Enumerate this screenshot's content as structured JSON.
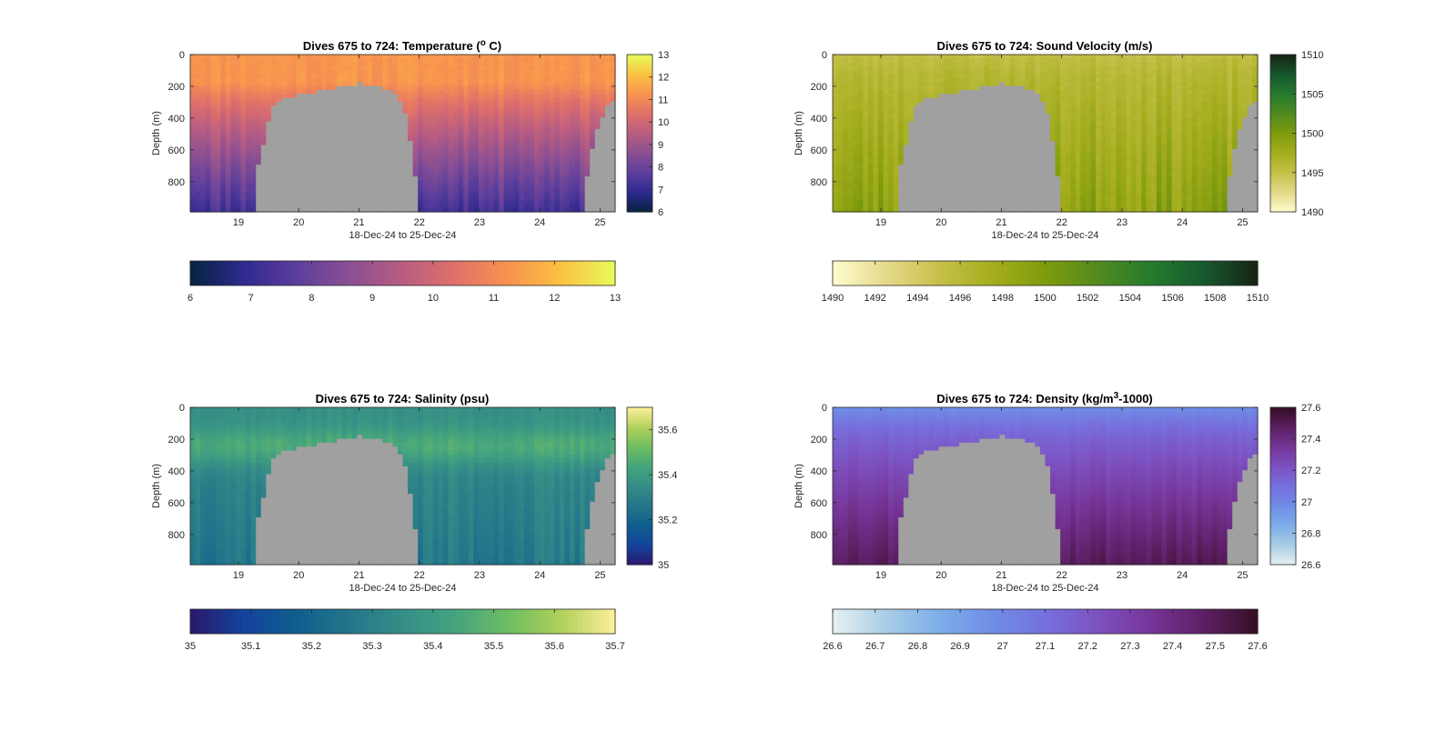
{
  "figure": {
    "background": "#ffffff",
    "mask_color": "#a0a0a0"
  },
  "chart_data": [
    {
      "type": "heatmap",
      "title": "Dives 675 to 724: Temperature (° C)",
      "title_parts": [
        "Dives 675 to 724: Temperature (",
        "o",
        " C)"
      ],
      "xlabel": "18-Dec-24 to 25-Dec-24",
      "ylabel": "Depth (m)",
      "x_ticks": [
        "19",
        "20",
        "21",
        "22",
        "23",
        "24",
        "25"
      ],
      "x_tick_values": [
        19,
        20,
        21,
        22,
        23,
        24,
        25
      ],
      "xlim": [
        18.2,
        25.25
      ],
      "y_ticks": [
        "0",
        "200",
        "400",
        "600",
        "800"
      ],
      "y_tick_values": [
        0,
        200,
        400,
        600,
        800
      ],
      "ylim": [
        0,
        990
      ],
      "y_reversed": true,
      "colormap": "thermal",
      "colormap_stops": [
        "#04233e",
        "#2e2a8f",
        "#5c3e9c",
        "#8a4f93",
        "#b85d82",
        "#e0706a",
        "#f8934f",
        "#fbc242",
        "#e8fa5b"
      ],
      "clim": [
        6,
        13
      ],
      "vertical_colorbar_ticks": [
        "6",
        "7",
        "8",
        "9",
        "10",
        "11",
        "12",
        "13"
      ],
      "horizontal_colorbar_ticks": [
        "6",
        "7",
        "8",
        "9",
        "10",
        "11",
        "12",
        "13"
      ],
      "surface_value": 11.3,
      "bottom_value": 7.3,
      "profile_shape": "warm-decay",
      "noise": 0.35,
      "seed": 11,
      "bottom_depth_profile": {
        "x": [
          18.2,
          19.25,
          19.3,
          19.45,
          19.55,
          19.7,
          19.9,
          20.1,
          20.35,
          20.6,
          20.8,
          21.0,
          21.2,
          21.4,
          21.55,
          21.7,
          21.8,
          21.9,
          22.0,
          24.7,
          24.8,
          24.9,
          25.0,
          25.1,
          25.25
        ],
        "depth": [
          990,
          990,
          730,
          520,
          340,
          280,
          265,
          250,
          230,
          210,
          195,
          185,
          190,
          205,
          240,
          300,
          420,
          650,
          990,
          990,
          730,
          550,
          420,
          330,
          270
        ]
      }
    },
    {
      "type": "heatmap",
      "title": "Dives 675 to 724: Sound Velocity (m/s)",
      "title_parts": [
        "Dives 675 to 724: Sound Velocity (m/s)"
      ],
      "xlabel": "18-Dec-24 to 25-Dec-24",
      "ylabel": "Depth (m)",
      "x_ticks": [
        "19",
        "20",
        "21",
        "22",
        "23",
        "24",
        "25"
      ],
      "x_tick_values": [
        19,
        20,
        21,
        22,
        23,
        24,
        25
      ],
      "xlim": [
        18.2,
        25.25
      ],
      "y_ticks": [
        "0",
        "200",
        "400",
        "600",
        "800"
      ],
      "y_tick_values": [
        0,
        200,
        400,
        600,
        800
      ],
      "ylim": [
        0,
        990
      ],
      "y_reversed": true,
      "colormap": "speed",
      "colormap_stops": [
        "#fffdcd",
        "#e5d98b",
        "#c6c04a",
        "#a5ae1f",
        "#7f9b0c",
        "#528a1f",
        "#257b2e",
        "#17582e",
        "#172313"
      ],
      "clim": [
        1490,
        1510
      ],
      "vertical_colorbar_ticks": [
        "1490",
        "1495",
        "1500",
        "1505",
        "1510"
      ],
      "horizontal_colorbar_ticks": [
        "1490",
        "1492",
        "1494",
        "1496",
        "1498",
        "1500",
        "1502",
        "1504",
        "1506",
        "1508",
        "1510"
      ],
      "surface_value": 1495.3,
      "bottom_value": 1499.2,
      "profile_shape": "sound-speed",
      "noise": 1.2,
      "seed": 23,
      "bottom_depth_profile": {
        "x": [
          18.2,
          19.25,
          19.3,
          19.45,
          19.55,
          19.7,
          19.9,
          20.1,
          20.35,
          20.6,
          20.8,
          21.0,
          21.2,
          21.4,
          21.55,
          21.7,
          21.8,
          21.9,
          22.0,
          24.7,
          24.8,
          24.9,
          25.0,
          25.1,
          25.25
        ],
        "depth": [
          990,
          990,
          730,
          520,
          340,
          280,
          265,
          250,
          230,
          210,
          195,
          185,
          190,
          205,
          240,
          300,
          420,
          650,
          990,
          990,
          730,
          550,
          420,
          330,
          270
        ]
      }
    },
    {
      "type": "heatmap",
      "title": "Dives 675 to 724: Salinity (psu)",
      "title_parts": [
        "Dives 675 to 724: Salinity (psu)"
      ],
      "xlabel": "18-Dec-24 to 25-Dec-24",
      "ylabel": "Depth (m)",
      "x_ticks": [
        "19",
        "20",
        "21",
        "22",
        "23",
        "24",
        "25"
      ],
      "x_tick_values": [
        19,
        20,
        21,
        22,
        23,
        24,
        25
      ],
      "xlim": [
        18.2,
        25.25
      ],
      "y_ticks": [
        "0",
        "200",
        "400",
        "600",
        "800"
      ],
      "y_tick_values": [
        0,
        200,
        400,
        600,
        800
      ],
      "ylim": [
        0,
        990
      ],
      "y_reversed": true,
      "colormap": "haline",
      "colormap_stops": [
        "#2a186c",
        "#14439c",
        "#0f5e8e",
        "#24768a",
        "#358d87",
        "#45a47e",
        "#6ebd61",
        "#b1d15b",
        "#fdef9a"
      ],
      "clim": [
        35,
        35.7
      ],
      "vertical_colorbar_ticks": [
        "35",
        "35.2",
        "35.4",
        "35.6"
      ],
      "vertical_colorbar_tick_values": [
        35,
        35.2,
        35.4,
        35.6
      ],
      "horizontal_colorbar_ticks": [
        "35",
        "35.1",
        "35.2",
        "35.3",
        "35.4",
        "35.5",
        "35.6",
        "35.7"
      ],
      "surface_value": 35.36,
      "bottom_value": 35.27,
      "profile_shape": "salinity",
      "noise": 0.035,
      "seed": 37,
      "bottom_depth_profile": {
        "x": [
          18.2,
          19.25,
          19.3,
          19.45,
          19.55,
          19.7,
          19.9,
          20.1,
          20.35,
          20.6,
          20.8,
          21.0,
          21.2,
          21.4,
          21.55,
          21.7,
          21.8,
          21.9,
          22.0,
          24.7,
          24.8,
          24.9,
          25.0,
          25.1,
          25.25
        ],
        "depth": [
          990,
          990,
          730,
          520,
          340,
          280,
          265,
          250,
          230,
          210,
          195,
          185,
          190,
          205,
          240,
          300,
          420,
          650,
          990,
          990,
          730,
          550,
          420,
          330,
          270
        ]
      }
    },
    {
      "type": "heatmap",
      "title": "Dives 675 to 724: Density (kg/m³-1000)",
      "title_parts": [
        "Dives 675 to 724: Density (kg/m",
        "3",
        "-1000)"
      ],
      "xlabel": "18-Dec-24 to 25-Dec-24",
      "ylabel": "Depth (m)",
      "x_ticks": [
        "19",
        "20",
        "21",
        "22",
        "23",
        "24",
        "25"
      ],
      "x_tick_values": [
        19,
        20,
        21,
        22,
        23,
        24,
        25
      ],
      "xlim": [
        18.2,
        25.25
      ],
      "y_ticks": [
        "0",
        "200",
        "400",
        "600",
        "800"
      ],
      "y_tick_values": [
        0,
        200,
        400,
        600,
        800
      ],
      "ylim": [
        0,
        990
      ],
      "y_reversed": true,
      "colormap": "dense",
      "colormap_stops": [
        "#e6f1f1",
        "#a9cde6",
        "#7daee8",
        "#6f8ee6",
        "#7670dd",
        "#7d51c0",
        "#763597",
        "#5c1f63",
        "#360e24"
      ],
      "clim": [
        26.6,
        27.6
      ],
      "vertical_colorbar_ticks": [
        "26.6",
        "26.8",
        "27",
        "27.2",
        "27.4",
        "27.6"
      ],
      "vertical_colorbar_tick_values": [
        26.6,
        26.8,
        27.0,
        27.2,
        27.4,
        27.6
      ],
      "horizontal_colorbar_ticks": [
        "26.6",
        "26.7",
        "26.8",
        "26.9",
        "27",
        "27.1",
        "27.2",
        "27.3",
        "27.4",
        "27.5",
        "27.6"
      ],
      "surface_value": 26.98,
      "bottom_value": 27.5,
      "profile_shape": "density",
      "noise": 0.03,
      "seed": 53,
      "bottom_depth_profile": {
        "x": [
          18.2,
          19.25,
          19.3,
          19.45,
          19.55,
          19.7,
          19.9,
          20.1,
          20.35,
          20.6,
          20.8,
          21.0,
          21.2,
          21.4,
          21.55,
          21.7,
          21.8,
          21.9,
          22.0,
          24.7,
          24.8,
          24.9,
          25.0,
          25.1,
          25.25
        ],
        "depth": [
          990,
          990,
          730,
          520,
          340,
          280,
          265,
          250,
          230,
          210,
          195,
          185,
          190,
          205,
          240,
          300,
          420,
          650,
          990,
          990,
          730,
          550,
          420,
          330,
          270
        ]
      }
    }
  ]
}
